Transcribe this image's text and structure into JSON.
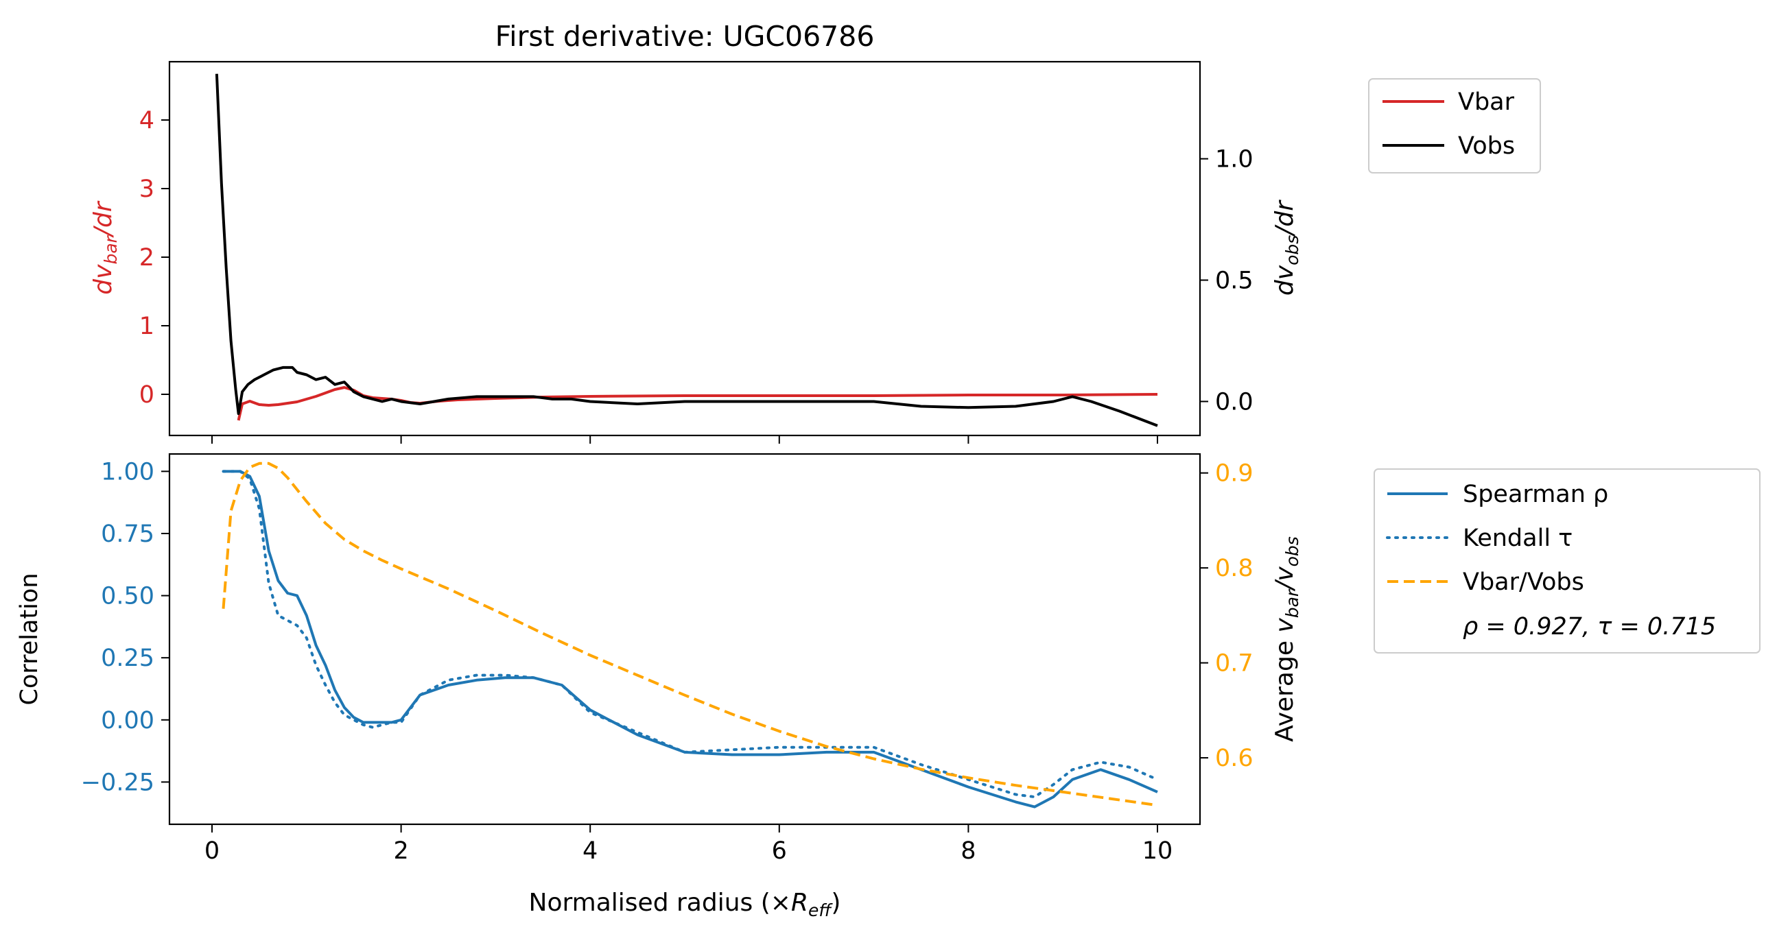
{
  "figure": {
    "title": "First derivative: UGC06786"
  },
  "colors": {
    "vbar": "#d62728",
    "vobs": "#000000",
    "spearman": "#1f77b4",
    "kendall": "#1f77b4",
    "ratio": "#ffa500"
  },
  "chart_data": [
    {
      "type": "line",
      "panel": "top",
      "title": "First derivative: UGC06786",
      "xlabel": "",
      "ylabel_left": "dv_bar/dr",
      "ylabel_right": "dv_obs/dr",
      "xlim": [
        -0.45,
        10.45
      ],
      "ylim_left": [
        -0.6,
        4.85
      ],
      "ylim_right": [
        -0.14,
        1.4
      ],
      "xticks": [
        0,
        2,
        4,
        6,
        8,
        10
      ],
      "yticks_left": [
        "0",
        "1",
        "2",
        "3",
        "4"
      ],
      "yticks_right": [
        "0.0",
        "0.5",
        "1.0"
      ],
      "grid": false,
      "legend_position": "outside-right",
      "series": [
        {
          "name": "Vbar",
          "axis": "left",
          "x": [
            0.28,
            0.32,
            0.4,
            0.5,
            0.6,
            0.7,
            0.8,
            0.9,
            1.0,
            1.1,
            1.2,
            1.3,
            1.4,
            1.5,
            1.6,
            1.7,
            1.8,
            1.9,
            2.0,
            2.1,
            2.2,
            2.4,
            2.6,
            3.0,
            3.5,
            4.0,
            5.0,
            6.0,
            7.0,
            8.0,
            9.0,
            10.0
          ],
          "y": [
            -0.38,
            -0.14,
            -0.1,
            -0.15,
            -0.16,
            -0.15,
            -0.13,
            -0.11,
            -0.07,
            -0.03,
            0.02,
            0.07,
            0.1,
            0.06,
            -0.02,
            -0.05,
            -0.06,
            -0.07,
            -0.09,
            -0.12,
            -0.13,
            -0.1,
            -0.08,
            -0.06,
            -0.04,
            -0.03,
            -0.02,
            -0.02,
            -0.02,
            -0.01,
            -0.01,
            0.0
          ]
        },
        {
          "name": "Vobs",
          "axis": "right",
          "x": [
            0.05,
            0.1,
            0.15,
            0.2,
            0.25,
            0.28,
            0.32,
            0.38,
            0.45,
            0.55,
            0.65,
            0.75,
            0.85,
            0.9,
            1.0,
            1.1,
            1.2,
            1.3,
            1.4,
            1.5,
            1.6,
            1.7,
            1.8,
            1.9,
            2.0,
            2.2,
            2.5,
            2.8,
            3.1,
            3.4,
            3.6,
            3.8,
            4.0,
            4.5,
            5.0,
            5.5,
            6.0,
            6.5,
            7.0,
            7.5,
            8.0,
            8.5,
            8.9,
            9.1,
            9.3,
            9.6,
            10.0
          ],
          "y": [
            1.35,
            0.9,
            0.55,
            0.25,
            0.05,
            -0.05,
            0.04,
            0.07,
            0.09,
            0.11,
            0.13,
            0.14,
            0.14,
            0.12,
            0.11,
            0.09,
            0.1,
            0.07,
            0.08,
            0.04,
            0.02,
            0.01,
            0.0,
            0.01,
            0.0,
            -0.01,
            0.01,
            0.02,
            0.02,
            0.02,
            0.01,
            0.01,
            0.0,
            -0.01,
            0.0,
            0.0,
            0.0,
            0.0,
            0.0,
            -0.02,
            -0.025,
            -0.02,
            0.0,
            0.02,
            0.0,
            -0.04,
            -0.1
          ]
        }
      ],
      "legend": [
        "Vbar",
        "Vobs"
      ]
    },
    {
      "type": "line",
      "panel": "bottom",
      "xlabel": "Normalised radius (×R_eff)",
      "ylabel_left": "Correlation",
      "ylabel_right": "Average v_bar/v_obs",
      "xlim": [
        -0.45,
        10.45
      ],
      "ylim_left": [
        -0.42,
        1.07
      ],
      "ylim_right": [
        0.53,
        0.92
      ],
      "xticks": [
        "0",
        "2",
        "4",
        "6",
        "8",
        "10"
      ],
      "yticks_left": [
        "1.00",
        "0.75",
        "0.50",
        "0.25",
        "0.00",
        "−0.25"
      ],
      "yticks_right": [
        "0.9",
        "0.8",
        "0.7",
        "0.6"
      ],
      "grid": false,
      "legend_position": "outside-right",
      "series": [
        {
          "name": "Spearman ρ",
          "axis": "left",
          "style": "solid",
          "x": [
            0.12,
            0.3,
            0.4,
            0.5,
            0.6,
            0.7,
            0.8,
            0.9,
            1.0,
            1.1,
            1.2,
            1.3,
            1.4,
            1.5,
            1.6,
            1.7,
            1.8,
            1.9,
            2.0,
            2.2,
            2.5,
            2.8,
            3.1,
            3.4,
            3.7,
            4.0,
            4.5,
            5.0,
            5.5,
            6.0,
            6.5,
            7.0,
            7.5,
            8.0,
            8.5,
            8.7,
            8.9,
            9.1,
            9.4,
            9.7,
            10.0
          ],
          "y": [
            1.0,
            1.0,
            0.98,
            0.9,
            0.68,
            0.56,
            0.51,
            0.5,
            0.42,
            0.3,
            0.22,
            0.12,
            0.05,
            0.01,
            -0.01,
            -0.01,
            -0.01,
            -0.01,
            0.0,
            0.1,
            0.14,
            0.16,
            0.17,
            0.17,
            0.14,
            0.04,
            -0.06,
            -0.13,
            -0.14,
            -0.14,
            -0.13,
            -0.13,
            -0.2,
            -0.27,
            -0.33,
            -0.35,
            -0.31,
            -0.24,
            -0.2,
            -0.24,
            -0.29
          ]
        },
        {
          "name": "Kendall τ",
          "axis": "left",
          "style": "dotted",
          "x": [
            0.12,
            0.3,
            0.4,
            0.5,
            0.6,
            0.7,
            0.8,
            0.9,
            1.0,
            1.1,
            1.2,
            1.3,
            1.4,
            1.5,
            1.6,
            1.7,
            1.8,
            1.9,
            2.0,
            2.2,
            2.5,
            2.8,
            3.1,
            3.4,
            3.7,
            4.0,
            4.5,
            5.0,
            5.5,
            6.0,
            6.5,
            7.0,
            7.5,
            8.0,
            8.5,
            8.7,
            8.9,
            9.1,
            9.4,
            9.7,
            10.0
          ],
          "y": [
            1.0,
            1.0,
            0.97,
            0.85,
            0.55,
            0.42,
            0.4,
            0.38,
            0.33,
            0.22,
            0.14,
            0.07,
            0.02,
            0.0,
            -0.02,
            -0.03,
            -0.02,
            -0.01,
            -0.01,
            0.1,
            0.16,
            0.18,
            0.18,
            0.17,
            0.14,
            0.03,
            -0.05,
            -0.13,
            -0.12,
            -0.11,
            -0.11,
            -0.11,
            -0.18,
            -0.24,
            -0.3,
            -0.31,
            -0.26,
            -0.2,
            -0.17,
            -0.19,
            -0.24
          ]
        },
        {
          "name": "Vbar/Vobs",
          "axis": "right",
          "style": "dashed",
          "x": [
            0.12,
            0.2,
            0.3,
            0.4,
            0.5,
            0.6,
            0.7,
            0.8,
            1.0,
            1.2,
            1.4,
            1.6,
            1.8,
            2.0,
            2.5,
            3.0,
            3.5,
            4.0,
            4.5,
            5.0,
            5.5,
            6.0,
            6.5,
            7.0,
            7.5,
            8.0,
            8.5,
            9.0,
            9.5,
            10.0
          ],
          "y": [
            0.757,
            0.86,
            0.892,
            0.906,
            0.91,
            0.91,
            0.905,
            0.895,
            0.87,
            0.847,
            0.83,
            0.818,
            0.808,
            0.799,
            0.778,
            0.755,
            0.731,
            0.708,
            0.687,
            0.666,
            0.646,
            0.628,
            0.612,
            0.599,
            0.588,
            0.579,
            0.571,
            0.564,
            0.557,
            0.55
          ]
        }
      ],
      "legend": [
        "Spearman ρ",
        "Kendall τ",
        "Vbar/Vobs"
      ],
      "annotation": "ρ = 0.927, τ = 0.715"
    }
  ]
}
